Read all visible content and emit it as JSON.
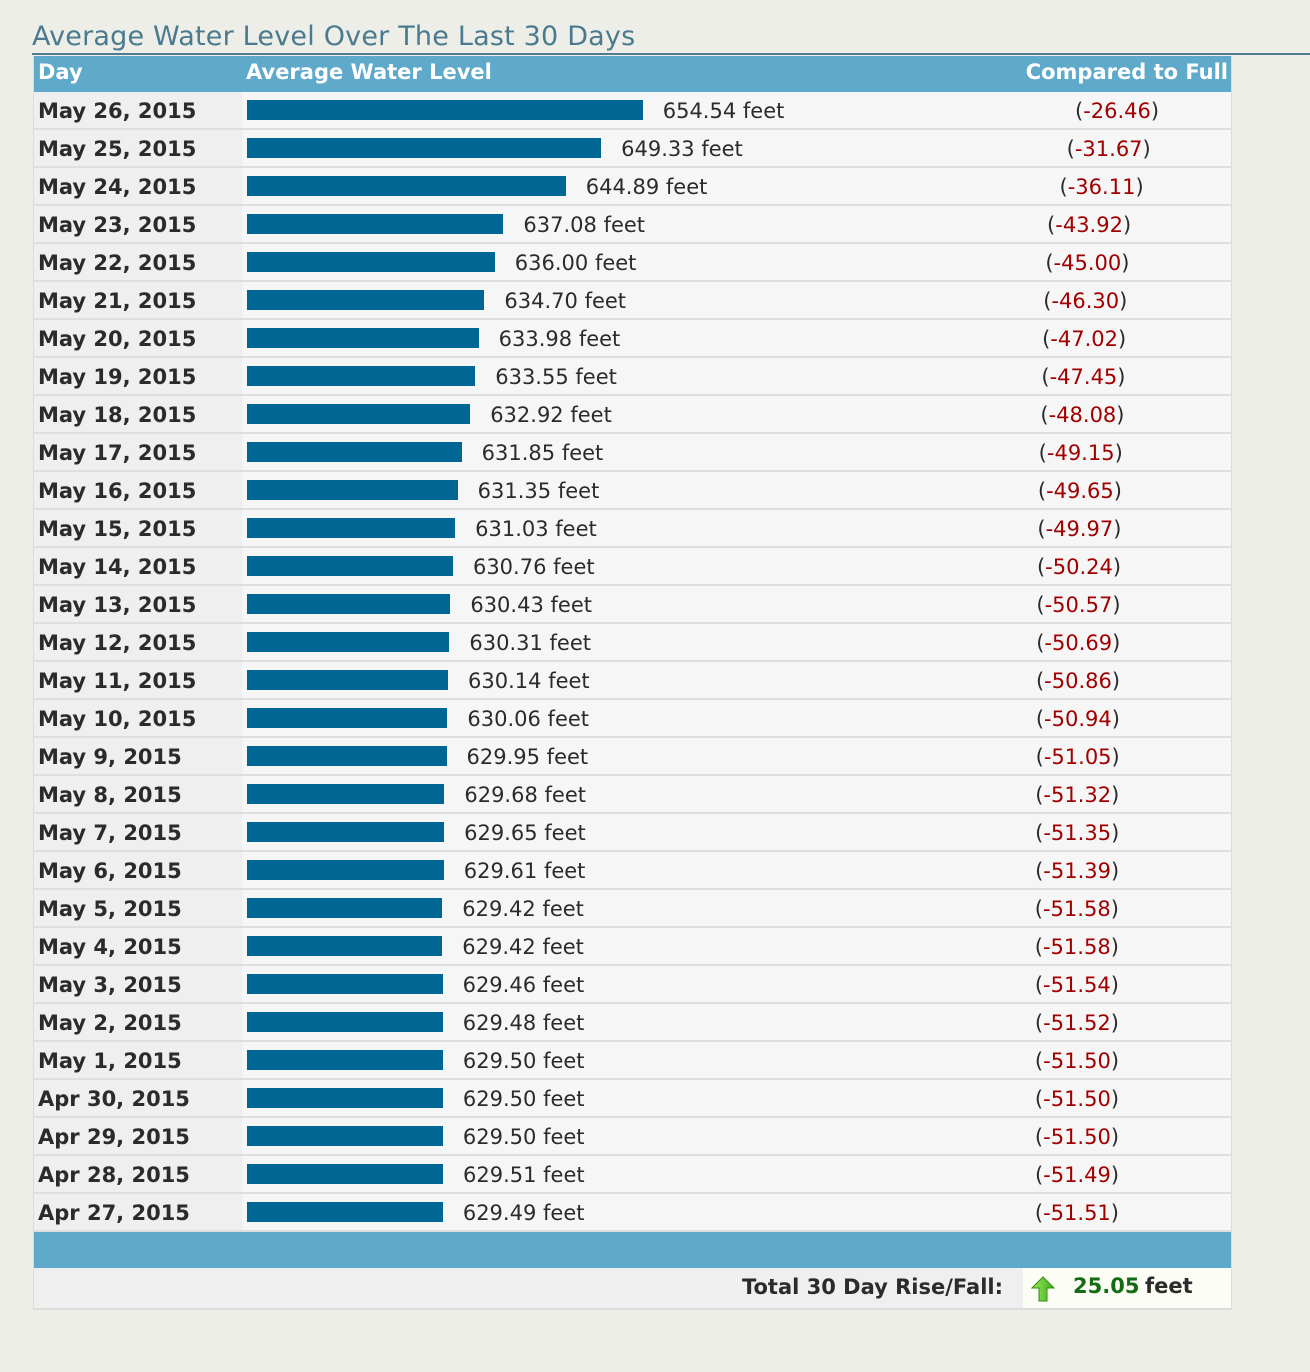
{
  "title": "Average Water Level Over The Last 30 Days",
  "columns": {
    "day": "Day",
    "level": "Average Water Level",
    "compare": "Compared to Full"
  },
  "colors": {
    "bar": "#006795",
    "header": "#5fa9cb",
    "negative": "#a00000",
    "positive": "#146b14"
  },
  "units": "feet",
  "rows": [
    {
      "day": "May 26, 2015",
      "level": "654.54",
      "compare": "-26.46"
    },
    {
      "day": "May 25, 2015",
      "level": "649.33",
      "compare": "-31.67"
    },
    {
      "day": "May 24, 2015",
      "level": "644.89",
      "compare": "-36.11"
    },
    {
      "day": "May 23, 2015",
      "level": "637.08",
      "compare": "-43.92"
    },
    {
      "day": "May 22, 2015",
      "level": "636.00",
      "compare": "-45.00"
    },
    {
      "day": "May 21, 2015",
      "level": "634.70",
      "compare": "-46.30"
    },
    {
      "day": "May 20, 2015",
      "level": "633.98",
      "compare": "-47.02"
    },
    {
      "day": "May 19, 2015",
      "level": "633.55",
      "compare": "-47.45"
    },
    {
      "day": "May 18, 2015",
      "level": "632.92",
      "compare": "-48.08"
    },
    {
      "day": "May 17, 2015",
      "level": "631.85",
      "compare": "-49.15"
    },
    {
      "day": "May 16, 2015",
      "level": "631.35",
      "compare": "-49.65"
    },
    {
      "day": "May 15, 2015",
      "level": "631.03",
      "compare": "-49.97"
    },
    {
      "day": "May 14, 2015",
      "level": "630.76",
      "compare": "-50.24"
    },
    {
      "day": "May 13, 2015",
      "level": "630.43",
      "compare": "-50.57"
    },
    {
      "day": "May 12, 2015",
      "level": "630.31",
      "compare": "-50.69"
    },
    {
      "day": "May 11, 2015",
      "level": "630.14",
      "compare": "-50.86"
    },
    {
      "day": "May 10, 2015",
      "level": "630.06",
      "compare": "-50.94"
    },
    {
      "day": "May 9, 2015",
      "level": "629.95",
      "compare": "-51.05"
    },
    {
      "day": "May 8, 2015",
      "level": "629.68",
      "compare": "-51.32"
    },
    {
      "day": "May 7, 2015",
      "level": "629.65",
      "compare": "-51.35"
    },
    {
      "day": "May 6, 2015",
      "level": "629.61",
      "compare": "-51.39"
    },
    {
      "day": "May 5, 2015",
      "level": "629.42",
      "compare": "-51.58"
    },
    {
      "day": "May 4, 2015",
      "level": "629.42",
      "compare": "-51.58"
    },
    {
      "day": "May 3, 2015",
      "level": "629.46",
      "compare": "-51.54"
    },
    {
      "day": "May 2, 2015",
      "level": "629.48",
      "compare": "-51.52"
    },
    {
      "day": "May 1, 2015",
      "level": "629.50",
      "compare": "-51.50"
    },
    {
      "day": "Apr 30, 2015",
      "level": "629.50",
      "compare": "-51.50"
    },
    {
      "day": "Apr 29, 2015",
      "level": "629.50",
      "compare": "-51.50"
    },
    {
      "day": "Apr 28, 2015",
      "level": "629.51",
      "compare": "-51.49"
    },
    {
      "day": "Apr 27, 2015",
      "level": "629.49",
      "compare": "-51.51"
    }
  ],
  "total": {
    "label": "Total 30 Day Rise/Fall:",
    "value": "25.05",
    "unit": "feet",
    "direction_icon": "up-arrow-icon"
  }
}
